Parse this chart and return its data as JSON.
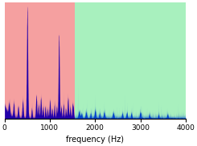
{
  "xlabel": "frequency (Hz)",
  "xlim": [
    0,
    4000
  ],
  "cutoff_hz": 1550,
  "pink_color": "#F5A0A0",
  "green_color": "#A8F0BE",
  "spectrum_color_low": "#2200AA",
  "spectrum_color_high": "#0044CC",
  "xticks": [
    0,
    1000,
    2000,
    3000,
    4000
  ],
  "figsize": [
    2.45,
    1.82
  ],
  "dpi": 100,
  "xlabel_fontsize": 7,
  "tick_fontsize": 6.5
}
